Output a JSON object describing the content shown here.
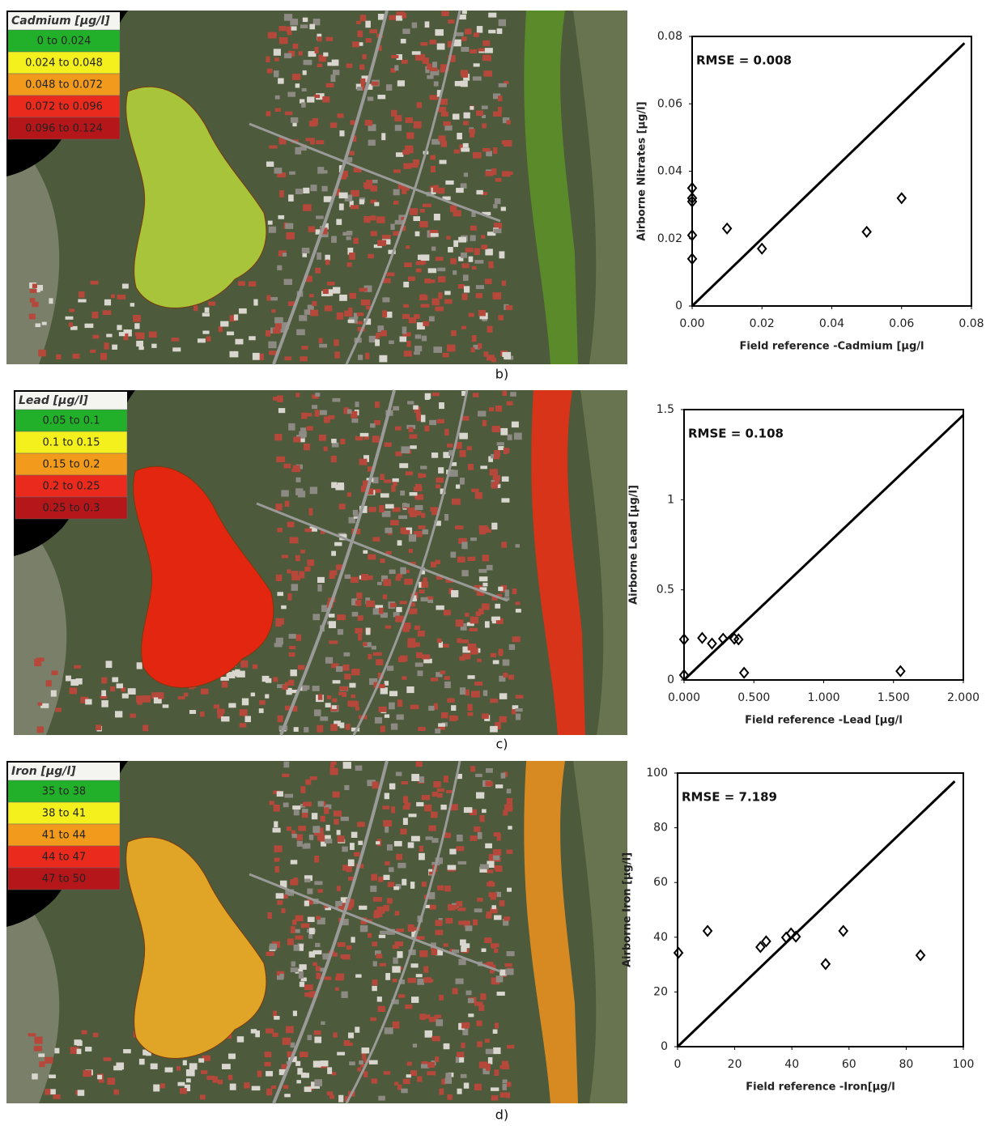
{
  "chart_data": [
    {
      "type": "scatter",
      "annotation": "RMSE = 0.008",
      "y_label": "Airborne Nitrates [µg/l]",
      "x_label": "Field reference -Cadmium [µg/l",
      "x": [
        0,
        0,
        0,
        0,
        0,
        0.01,
        0.02,
        0.05,
        0.06
      ],
      "values": [
        0.035,
        0.032,
        0.031,
        0.021,
        0.014,
        0.023,
        0.017,
        0.022,
        0.032
      ],
      "color": "#000000",
      "fit_line": {
        "x": [
          0,
          0.078
        ],
        "y": [
          0,
          0.078
        ]
      },
      "xlim": [
        0,
        0.08
      ],
      "xticks": [
        {
          "value": 0,
          "label": "0.00"
        },
        0.02,
        0.04,
        0.06,
        0.08
      ],
      "ylim": [
        0,
        0.08
      ],
      "yticks": [
        0,
        0.02,
        0.04,
        0.06,
        0.08
      ]
    },
    {
      "type": "scatter",
      "annotation": "RMSE = 0.108",
      "y_label": "Airborne Lead [µg/l]",
      "x_label": "Field reference -Lead [µg/l",
      "x": [
        0,
        0,
        0.13,
        0.2,
        0.28,
        0.36,
        0.39,
        0.43,
        1.55
      ],
      "values": [
        0.225,
        0.027,
        0.233,
        0.202,
        0.229,
        0.229,
        0.225,
        0.04,
        0.049
      ],
      "color": "#000000",
      "fit_line": {
        "x": [
          0,
          2
        ],
        "y": [
          0,
          1.47
        ]
      },
      "xlim": [
        0,
        2
      ],
      "xticks": [
        {
          "value": 0,
          "label": "0.000"
        },
        {
          "value": 0.5,
          "label": "0.500"
        },
        {
          "value": 1,
          "label": "1.000"
        },
        {
          "value": 1.5,
          "label": "1.500"
        },
        {
          "value": 2,
          "label": "2.000"
        }
      ],
      "ylim": [
        0,
        1.5
      ],
      "yticks": [
        0,
        0.5,
        1,
        1.5
      ]
    },
    {
      "type": "scatter",
      "annotation": "RMSE = 7.189",
      "y_label": "Airborne Iron [µg/l]",
      "x_label": "Field reference -Iron[µg/l",
      "x": [
        0.3,
        10.5,
        29,
        31,
        38,
        39.7,
        41.4,
        51.8,
        58,
        85
      ],
      "values": [
        34.3,
        42.3,
        36.4,
        38.5,
        39.9,
        41.4,
        40.2,
        30.2,
        42.3,
        33.4
      ],
      "color": "#000000",
      "fit_line": {
        "x": [
          0,
          97
        ],
        "y": [
          0,
          97
        ]
      },
      "xlim": [
        0,
        100
      ],
      "xticks": [
        0,
        20,
        40,
        60,
        80,
        100
      ],
      "ylim": [
        0,
        100
      ],
      "yticks": [
        0,
        20,
        40,
        60,
        80,
        100
      ]
    }
  ],
  "maps": [
    {
      "panel_label": "b)",
      "legend_title": "Cadmium [µg/l]",
      "legend": [
        {
          "label": "0 to 0.024",
          "color": "#22b02a"
        },
        {
          "label": "0.024 to 0.048",
          "color": "#f3f01e"
        },
        {
          "label": "0.048 to 0.072",
          "color": "#f29a1c"
        },
        {
          "label": "0.072 to 0.096",
          "color": "#ea2a1c"
        },
        {
          "label": "0.096 to 0.124",
          "color": "#b5161a"
        }
      ]
    },
    {
      "panel_label": "c)",
      "legend_title": "Lead [µg/l]",
      "legend": [
        {
          "label": "0.05 to 0.1",
          "color": "#22b02a"
        },
        {
          "label": "0.1 to 0.15",
          "color": "#f3f01e"
        },
        {
          "label": "0.15 to 0.2",
          "color": "#f29a1c"
        },
        {
          "label": "0.2 to 0.25",
          "color": "#ea2a1c"
        },
        {
          "label": "0.25 to 0.3",
          "color": "#b5161a"
        }
      ]
    },
    {
      "panel_label": "d)",
      "legend_title": "Iron [µg/l]",
      "legend": [
        {
          "label": "35 to 38",
          "color": "#22b02a"
        },
        {
          "label": "38 to 41",
          "color": "#f3f01e"
        },
        {
          "label": "41 to 44",
          "color": "#f29a1c"
        },
        {
          "label": "44 to 47",
          "color": "#ea2a1c"
        },
        {
          "label": "47 to 50",
          "color": "#b5161a"
        }
      ]
    }
  ]
}
